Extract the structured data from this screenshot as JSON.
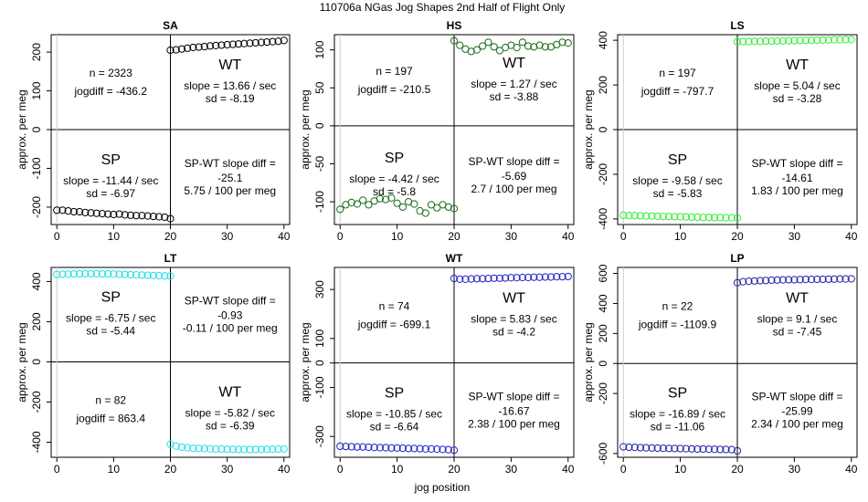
{
  "figure": {
    "title": "110706a   NGas Jog Shapes 2nd Half of Flight Only",
    "xlabel": "jog position"
  },
  "chart_data": [
    {
      "type": "scatter",
      "title": "SA",
      "ylabel": "approx. per meg",
      "xlim": [
        -1,
        41
      ],
      "ylim": [
        -245,
        245
      ],
      "xticks": [
        "0",
        "10",
        "20",
        "30",
        "40"
      ],
      "yticks": [
        "-200",
        "-100",
        "0",
        "100",
        "200"
      ],
      "color": "#000000",
      "sp_points": [
        -208,
        -208,
        -210,
        -212,
        -212,
        -214,
        -215,
        -216,
        -217,
        -218,
        -219,
        -218,
        -220,
        -221,
        -222,
        -222,
        -223,
        -224,
        -225,
        -226,
        -230
      ],
      "wt_points": [
        205,
        206,
        208,
        210,
        212,
        213,
        214,
        216,
        217,
        218,
        219,
        220,
        221,
        222,
        223,
        224,
        225,
        226,
        227,
        228,
        230
      ],
      "top_left": [
        "n = 2323",
        "jogdiff = -436.2"
      ],
      "top_right": [
        "WT",
        "slope = 13.66 / sec",
        "sd = -8.19"
      ],
      "bottom_left": [
        "SP",
        "slope = -11.44 / sec",
        "sd = -6.97"
      ],
      "bottom_right": [
        "SP-WT slope diff =",
        "-25.1",
        "5.75 / 100 per meg"
      ]
    },
    {
      "type": "scatter",
      "title": "HS",
      "ylabel": "approx. per meg",
      "xlim": [
        -1,
        41
      ],
      "ylim": [
        -130,
        120
      ],
      "xticks": [
        "0",
        "10",
        "20",
        "30",
        "40"
      ],
      "yticks": [
        "-100",
        "-50",
        "0",
        "50",
        "100"
      ],
      "color": "#1a6b1a",
      "sp_points": [
        -110,
        -104,
        -101,
        -103,
        -98,
        -104,
        -99,
        -96,
        -97,
        -95,
        -102,
        -107,
        -100,
        -103,
        -112,
        -115,
        -104,
        -108,
        -104,
        -107,
        -109
      ],
      "wt_points": [
        112,
        106,
        101,
        98,
        100,
        105,
        110,
        104,
        99,
        103,
        106,
        103,
        110,
        105,
        104,
        106,
        104,
        104,
        107,
        110,
        109
      ],
      "top_left": [
        "n = 197",
        "jogdiff = -210.5"
      ],
      "top_right": [
        "WT",
        "slope = 1.27 / sec",
        "sd = -3.88"
      ],
      "bottom_left": [
        "SP",
        "slope = -4.42 / sec",
        "sd = -5.8"
      ],
      "bottom_right": [
        "SP-WT slope diff =",
        "-5.69",
        "2.7 / 100 per meg"
      ]
    },
    {
      "type": "scatter",
      "title": "LS",
      "ylabel": "approx. per meg",
      "xlim": [
        -1,
        41
      ],
      "ylim": [
        -425,
        425
      ],
      "xticks": [
        "0",
        "10",
        "20",
        "30",
        "40"
      ],
      "yticks": [
        "-400",
        "-200",
        "0",
        "200",
        "400"
      ],
      "color": "#33ee33",
      "sp_points": [
        -383,
        -385,
        -385,
        -386,
        -387,
        -387,
        -388,
        -389,
        -389,
        -390,
        -390,
        -391,
        -392,
        -392,
        -393,
        -393,
        -394,
        -394,
        -395,
        -395,
        -396
      ],
      "wt_points": [
        393,
        394,
        394,
        395,
        395,
        396,
        396,
        397,
        397,
        398,
        398,
        399,
        399,
        400,
        400,
        401,
        401,
        402,
        402,
        403,
        403
      ],
      "top_left": [
        "n = 197",
        "jogdiff = -797.7"
      ],
      "top_right": [
        "WT",
        "slope = 5.04 / sec",
        "sd = -3.28"
      ],
      "bottom_left": [
        "SP",
        "slope = -9.58 / sec",
        "sd = -5.83"
      ],
      "bottom_right": [
        "SP-WT slope diff =",
        "-14.61",
        "1.83 / 100 per meg"
      ]
    },
    {
      "type": "scatter",
      "title": "LT",
      "ylabel": "approx. per meg",
      "xlim": [
        -1,
        41
      ],
      "ylim": [
        -475,
        470
      ],
      "xticks": [
        "0",
        "10",
        "20",
        "30",
        "40"
      ],
      "yticks": [
        "-400",
        "-200",
        "0",
        "200",
        "400"
      ],
      "color": "#22e0e8",
      "sp_points": [
        435,
        436,
        437,
        438,
        438,
        439,
        439,
        439,
        438,
        438,
        437,
        436,
        435,
        434,
        433,
        432,
        431,
        430,
        429,
        428,
        427
      ],
      "wt_points": [
        -410,
        -420,
        -425,
        -428,
        -430,
        -431,
        -432,
        -433,
        -434,
        -434,
        -435,
        -435,
        -436,
        -436,
        -436,
        -436,
        -436,
        -435,
        -435,
        -434,
        -434
      ],
      "top_left": [
        "SP",
        "slope = -6.75 / sec",
        "sd = -5.44"
      ],
      "top_right": [
        "SP-WT slope diff =",
        "-0.93",
        "-0.11 / 100 per meg"
      ],
      "bottom_left": [
        "n = 82",
        "jogdiff = 863.4"
      ],
      "bottom_right": [
        "WT",
        "slope = -5.82 / sec",
        "sd = -6.39"
      ]
    },
    {
      "type": "scatter",
      "title": "WT",
      "ylabel": "approx. per meg",
      "xlim": [
        -1,
        41
      ],
      "ylim": [
        -385,
        390
      ],
      "xticks": [
        "0",
        "10",
        "20",
        "30",
        "40"
      ],
      "yticks": [
        "-300",
        "-100",
        "0",
        "100",
        "300"
      ],
      "color": "#2222cc",
      "sp_points": [
        -340,
        -341,
        -342,
        -343,
        -343,
        -344,
        -345,
        -346,
        -346,
        -347,
        -347,
        -348,
        -349,
        -349,
        -350,
        -351,
        -351,
        -352,
        -353,
        -354,
        -356
      ],
      "wt_points": [
        345,
        342,
        342,
        343,
        344,
        344,
        345,
        346,
        346,
        347,
        348,
        348,
        349,
        349,
        350,
        350,
        351,
        351,
        352,
        352,
        353
      ],
      "top_left": [
        "n = 74",
        "jogdiff = -699.1"
      ],
      "top_right": [
        "WT",
        "slope = 5.83 / sec",
        "sd = -4.2"
      ],
      "bottom_left": [
        "SP",
        "slope = -10.85 / sec",
        "sd = -6.64"
      ],
      "bottom_right": [
        "SP-WT slope diff =",
        "-16.67",
        "2.38 / 100 per meg"
      ]
    },
    {
      "type": "scatter",
      "title": "LP",
      "ylabel": "approx. per meg",
      "xlim": [
        -1,
        41
      ],
      "ylim": [
        -625,
        640
      ],
      "xticks": [
        "0",
        "10",
        "20",
        "30",
        "40"
      ],
      "yticks": [
        "-600",
        "-200",
        "0",
        "200",
        "400",
        "600"
      ],
      "color": "#2222aa",
      "sp_points": [
        -555,
        -558,
        -559,
        -561,
        -562,
        -563,
        -564,
        -565,
        -566,
        -566,
        -567,
        -568,
        -569,
        -570,
        -570,
        -571,
        -572,
        -573,
        -573,
        -574,
        -582
      ],
      "wt_points": [
        538,
        545,
        548,
        550,
        552,
        553,
        555,
        556,
        557,
        558,
        558,
        559,
        560,
        560,
        561,
        561,
        562,
        562,
        563,
        563,
        564
      ],
      "top_left": [
        "n = 22",
        "jogdiff = -1109.9"
      ],
      "top_right": [
        "WT",
        "slope = 9.1 / sec",
        "sd = -7.45"
      ],
      "bottom_left": [
        "SP",
        "slope = -16.89 / sec",
        "sd = -11.06"
      ],
      "bottom_right": [
        "SP-WT slope diff =",
        "-25.99",
        "2.34 / 100 per meg"
      ]
    }
  ]
}
